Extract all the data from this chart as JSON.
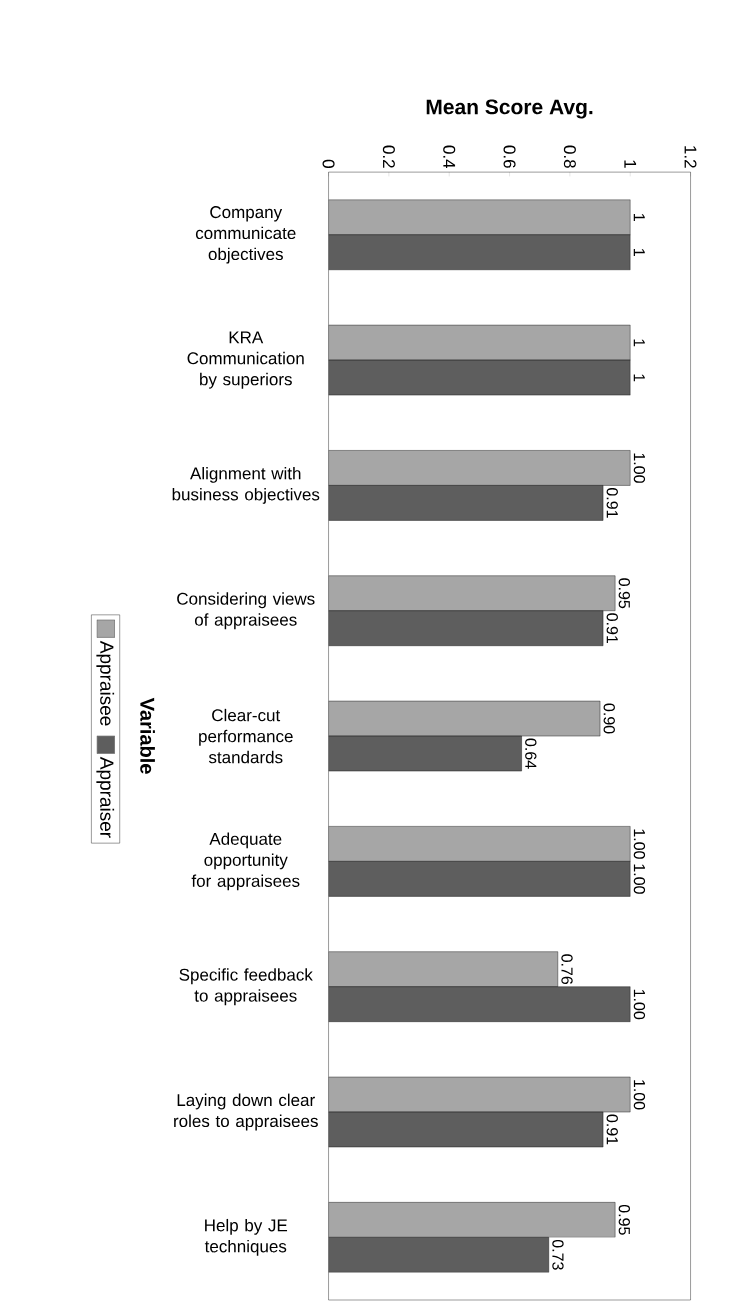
{
  "chart_data": {
    "type": "bar",
    "orientation": "horizontal",
    "xlabel": "Mean Score Avg.",
    "ylabel": "Variable",
    "categories": [
      "Company communicate objectives",
      "KRA Communication by superiors",
      "Alignment with business objectives",
      "Considering views of appraisees",
      "Clear-cut performance standards",
      "Adequate opportunity for appraisees",
      "Specific feedback to appraisees",
      "Laying down clear roles to appraisees",
      "Help by JE techniques"
    ],
    "series": [
      {
        "name": "Appraisee",
        "color": "#a6a6a6",
        "values": [
          1,
          1,
          1.0,
          0.95,
          0.9,
          1.0,
          0.76,
          1.0,
          0.95
        ],
        "value_labels": [
          "1",
          "1",
          "1.00",
          "0.95",
          "0.90",
          "1.00",
          "0.76",
          "1.00",
          "0.95"
        ]
      },
      {
        "name": "Appraiser",
        "color": "#5e5e5e",
        "values": [
          1,
          1,
          0.91,
          0.91,
          0.64,
          1.0,
          1.0,
          0.91,
          0.73
        ],
        "value_labels": [
          "1",
          "1",
          "0.91",
          "0.91",
          "0.64",
          "1.00",
          "1.00",
          "0.91",
          "0.73"
        ]
      }
    ],
    "xlim": [
      0,
      1.2
    ],
    "xticks": [
      0,
      0.2,
      0.4,
      0.6,
      0.8,
      1,
      1.2
    ],
    "legend": "left"
  }
}
